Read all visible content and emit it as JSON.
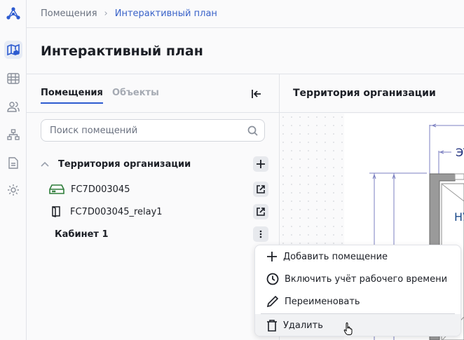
{
  "breadcrumb": {
    "parent": "Помещения",
    "current": "Интерактивный план"
  },
  "page_title": "Интерактивный план",
  "nav": {
    "items": [
      "logo-icon",
      "map-icon",
      "table-icon",
      "users-icon",
      "hierarchy-icon",
      "document-icon",
      "gear-icon"
    ],
    "active": "map-icon"
  },
  "tabs": [
    {
      "label": "Помещения",
      "active": true
    },
    {
      "label": "Объекты",
      "active": false
    }
  ],
  "search": {
    "placeholder": "Поиск помещений"
  },
  "tree": {
    "root": "Территория организации",
    "items": [
      {
        "label": "FC7D003045",
        "icon": "server-icon",
        "color": "#2e7d3a"
      },
      {
        "label": "FC7D003045_relay1",
        "icon": "door-icon"
      },
      {
        "label": "Кабинет 1"
      }
    ]
  },
  "plan": {
    "title": "Территория организации",
    "labels": [
      "ЭТ",
      "НУ"
    ]
  },
  "context_menu": {
    "items": [
      "Добавить помещение",
      "Включить учёт рабочего времени",
      "Переименовать",
      "Удалить"
    ],
    "hovered": "Удалить"
  },
  "colors": {
    "accent": "#2d5bd0",
    "link": "#3a63c9"
  }
}
